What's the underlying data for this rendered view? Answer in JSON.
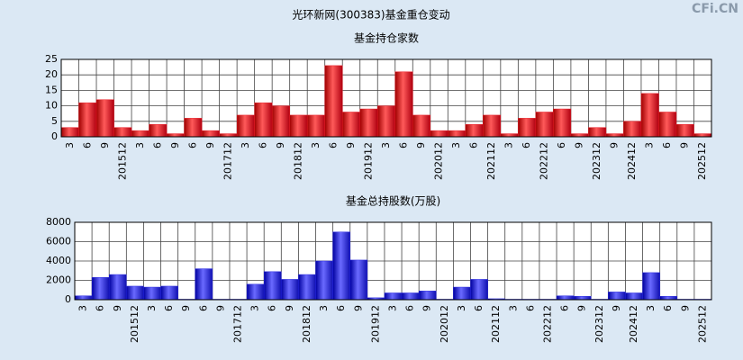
{
  "title": "光环新网(300383)基金重仓变动",
  "watermark": "CFi.CN",
  "chart_data": [
    {
      "type": "bar",
      "title": "基金持仓家数",
      "color": "#e8202a",
      "categories": [
        "3",
        "6",
        "9",
        "201512",
        "3",
        "6",
        "9",
        "6",
        "9",
        "201712",
        "3",
        "6",
        "9",
        "201812",
        "3",
        "6",
        "9",
        "201912",
        "3",
        "6",
        "9",
        "202012",
        "3",
        "6",
        "202112",
        "3",
        "6",
        "202212",
        "6",
        "9",
        "202312",
        "9",
        "202412",
        "3",
        "6",
        "9",
        "202512"
      ],
      "values": [
        3,
        11,
        12,
        3,
        2,
        4,
        1,
        6,
        2,
        1,
        7,
        11,
        10,
        7,
        7,
        23,
        8,
        9,
        10,
        21,
        7,
        2,
        2,
        4,
        7,
        1,
        6,
        8,
        9,
        1,
        3,
        1,
        5,
        14,
        8,
        4,
        1
      ],
      "ylim": [
        0,
        25
      ],
      "yticks": [
        0,
        5,
        10,
        15,
        20,
        25
      ],
      "grid": true
    },
    {
      "type": "bar",
      "title": "基金总持股数(万股)",
      "color": "#2a2ae0",
      "categories": [
        "3",
        "6",
        "9",
        "201512",
        "3",
        "6",
        "9",
        "6",
        "9",
        "201712",
        "3",
        "6",
        "9",
        "201812",
        "3",
        "6",
        "9",
        "201912",
        "3",
        "6",
        "9",
        "202012",
        "3",
        "6",
        "202112",
        "3",
        "6",
        "202212",
        "6",
        "9",
        "202312",
        "9",
        "202412",
        "3",
        "6",
        "9",
        "202512"
      ],
      "values": [
        400,
        2300,
        2600,
        1400,
        1300,
        1400,
        50,
        3200,
        50,
        50,
        1600,
        2900,
        2100,
        2600,
        4000,
        7000,
        4100,
        200,
        700,
        700,
        900,
        50,
        1300,
        2100,
        100,
        50,
        50,
        50,
        400,
        350,
        50,
        800,
        700,
        2800,
        350,
        50,
        50
      ],
      "ylim": [
        0,
        8000
      ],
      "yticks": [
        0,
        2000,
        4000,
        6000,
        8000
      ],
      "grid": true
    }
  ]
}
